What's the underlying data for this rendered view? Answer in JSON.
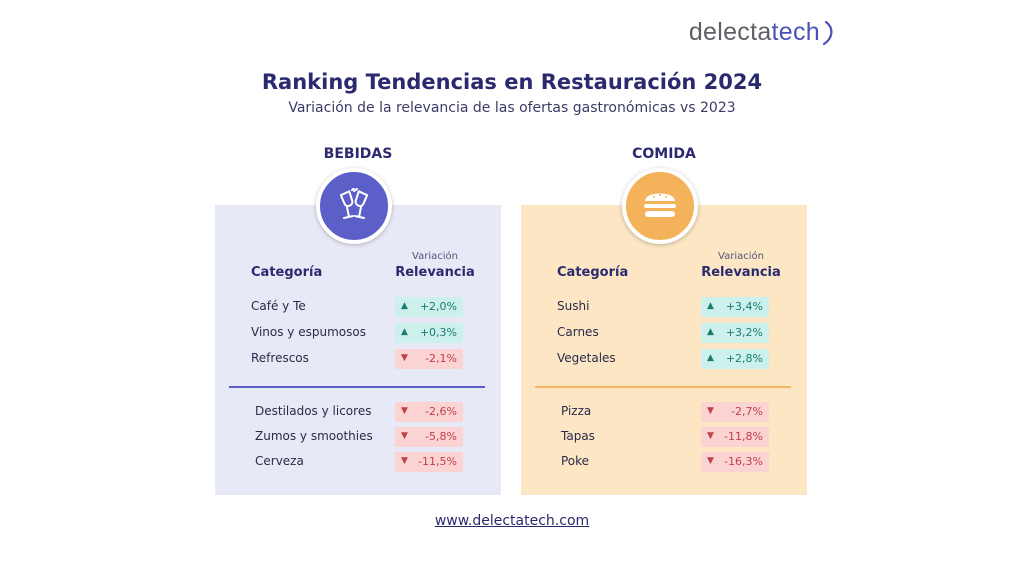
{
  "logo": {
    "part1": "delecta",
    "part2": "tech"
  },
  "title": "Ranking Tendencias en Restauración 2024",
  "subtitle": "Variación de la relevancia de las ofertas gastronómicas vs 2023",
  "url": "www.delectatech.com",
  "colors": {
    "bebidas_accent": "#5c5fc8",
    "comida_accent": "#f4b35a",
    "up_bg": "#ccf1ec",
    "down_bg": "#fbd3d3"
  },
  "bebidas": {
    "heading": "BEBIDAS",
    "icon": "wine-glasses-icon",
    "col_category": "Categoría",
    "col_variation": "Variación",
    "col_relevance": "Relevancia",
    "top": [
      {
        "name": "Café y Te",
        "value": "+2,0%",
        "dir": "up"
      },
      {
        "name": "Vinos y espumosos",
        "value": "+0,3%",
        "dir": "up"
      },
      {
        "name": "Refrescos",
        "value": "-2,1%",
        "dir": "down"
      }
    ],
    "bottom": [
      {
        "name": "Destilados y licores",
        "value": "-2,6%",
        "dir": "down"
      },
      {
        "name": "Zumos y smoothies",
        "value": "-5,8%",
        "dir": "down"
      },
      {
        "name": "Cerveza",
        "value": "-11,5%",
        "dir": "down"
      }
    ]
  },
  "comida": {
    "heading": "COMIDA",
    "icon": "burger-icon",
    "col_category": "Categoría",
    "col_variation": "Variación",
    "col_relevance": "Relevancia",
    "top": [
      {
        "name": "Sushi",
        "value": "+3,4%",
        "dir": "up"
      },
      {
        "name": "Carnes",
        "value": "+3,2%",
        "dir": "up"
      },
      {
        "name": "Vegetales",
        "value": "+2,8%",
        "dir": "up"
      }
    ],
    "bottom": [
      {
        "name": "Pizza",
        "value": "-2,7%",
        "dir": "down"
      },
      {
        "name": "Tapas",
        "value": "-11,8%",
        "dir": "down"
      },
      {
        "name": "Poke",
        "value": "-16,3%",
        "dir": "down"
      }
    ]
  }
}
